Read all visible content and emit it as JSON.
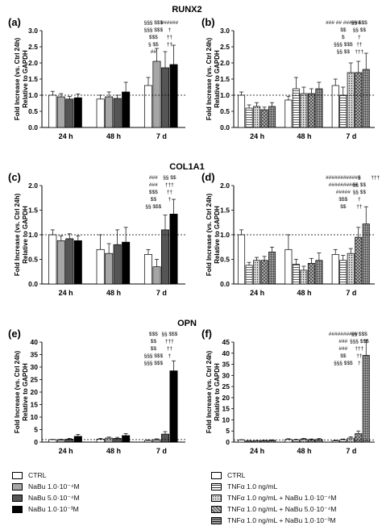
{
  "section_titles": [
    "RUNX2",
    "COL1A1",
    "OPN"
  ],
  "legend_left": {
    "items": [
      {
        "label": "CTRL",
        "color": "#ffffff"
      },
      {
        "label": "NaBu 1.0·10⁻⁴M",
        "color": "#a6a6a6"
      },
      {
        "label": "NaBu 5.0·10⁻⁴M",
        "color": "#555555"
      },
      {
        "label": "NaBu 1.0·10⁻³M",
        "color": "#000000"
      }
    ]
  },
  "legend_right": {
    "items": [
      {
        "label": "CTRL",
        "pattern": "white"
      },
      {
        "label": "TNFα 1.0 ng/mL",
        "pattern": "hlines"
      },
      {
        "label": "TNFα 1.0 ng/mL + NaBu 1.0·10⁻⁴M",
        "pattern": "dots"
      },
      {
        "label": "TNFα 1.0 ng/mL + NaBu 5.0·10⁻⁴M",
        "pattern": "dgrid"
      },
      {
        "label": "TNFα 1.0 ng/mL + NaBu 1.0·10⁻³M",
        "pattern": "grid"
      }
    ]
  },
  "chart_data": [
    {
      "panel": "(a)",
      "type": "bar",
      "title": "RUNX2",
      "ylabel": "Fold Increase (vs. Ctrl 24h) Relative to GAPDH",
      "ylim": [
        0,
        3.0
      ],
      "yticks": [
        "0.0",
        "0.5",
        "1.0",
        "1.5",
        "2.0",
        "2.5",
        "3.0"
      ],
      "categories": [
        "24 h",
        "48 h",
        "7 d"
      ],
      "reference_line": 1.0,
      "series": [
        {
          "values": [
            1.0,
            0.88,
            1.3
          ],
          "errors": [
            0.12,
            0.12,
            0.25
          ]
        },
        {
          "values": [
            0.95,
            0.95,
            2.05
          ],
          "errors": [
            0.1,
            0.15,
            0.4
          ]
        },
        {
          "values": [
            0.88,
            0.9,
            1.85
          ],
          "errors": [
            0.08,
            0.1,
            0.5
          ]
        },
        {
          "values": [
            0.92,
            1.1,
            1.95
          ],
          "errors": [
            0.12,
            0.3,
            0.6
          ]
        }
      ],
      "annotations": [
        "§§§ $$$",
        "§§§ $$$",
        "$$$",
        "§ $$",
        "##",
        "######",
        "†",
        "††",
        "††"
      ]
    },
    {
      "panel": "(b)",
      "type": "bar",
      "title": "",
      "ylabel": "Fold Increase (vs. Ctrl 24h) Relative to GAPDH",
      "ylim": [
        0,
        3.0
      ],
      "yticks": [
        "0.0",
        "0.5",
        "1.0",
        "1.5",
        "2.0",
        "2.5",
        "3.0"
      ],
      "categories": [
        "24 h",
        "48 h",
        "7 d"
      ],
      "reference_line": 1.0,
      "series": [
        {
          "values": [
            1.0,
            0.85,
            1.3
          ],
          "errors": [
            0.1,
            0.12,
            0.2
          ]
        },
        {
          "values": [
            0.6,
            1.2,
            1.0
          ],
          "errors": [
            0.1,
            0.35,
            0.25
          ]
        },
        {
          "values": [
            0.65,
            1.05,
            1.7
          ],
          "errors": [
            0.12,
            0.2,
            0.3
          ]
        },
        {
          "values": [
            0.55,
            1.05,
            1.7
          ],
          "errors": [
            0.08,
            0.15,
            0.35
          ]
        },
        {
          "values": [
            0.65,
            1.2,
            1.8
          ],
          "errors": [
            0.12,
            0.2,
            0.5
          ]
        }
      ],
      "annotations": [
        "### ## ######",
        "$$",
        "$",
        "§§§ $$$",
        "§§ $$",
        "§§ $$$",
        "§§ $$",
        "†",
        "††",
        "†††"
      ]
    },
    {
      "panel": "(c)",
      "type": "bar",
      "title": "COL1A1",
      "ylabel": "Fold Increase (vs. Ctrl 24h) Relative to GAPDH",
      "ylim": [
        0,
        2.0
      ],
      "yticks": [
        "0.0",
        "0.5",
        "1.0",
        "1.5",
        "2.0"
      ],
      "categories": [
        "24 h",
        "48 h",
        "7 d"
      ],
      "reference_line": 1.0,
      "series": [
        {
          "values": [
            1.0,
            0.7,
            0.6
          ],
          "errors": [
            0.1,
            0.3,
            0.1
          ]
        },
        {
          "values": [
            0.88,
            0.62,
            0.35
          ],
          "errors": [
            0.1,
            0.2,
            0.15
          ]
        },
        {
          "values": [
            0.92,
            0.8,
            1.1
          ],
          "errors": [
            0.1,
            0.3,
            0.3
          ]
        },
        {
          "values": [
            0.88,
            0.85,
            1.42
          ],
          "errors": [
            0.1,
            0.3,
            0.3
          ]
        }
      ],
      "annotations": [
        "###",
        "###",
        "$$$",
        "$$",
        "§§ $$$",
        "§§ $$",
        "†††",
        "††",
        "†"
      ]
    },
    {
      "panel": "(d)",
      "type": "bar",
      "title": "",
      "ylabel": "Fold Increase (vs. Ctrl 24h) Relative to GAPDH",
      "ylim": [
        0,
        2.0
      ],
      "yticks": [
        "0.0",
        "0.5",
        "1.0",
        "1.5",
        "2.0"
      ],
      "categories": [
        "24 h",
        "48 h",
        "7 d"
      ],
      "reference_line": 1.0,
      "series": [
        {
          "values": [
            1.0,
            0.7,
            0.6
          ],
          "errors": [
            0.1,
            0.3,
            0.1
          ]
        },
        {
          "values": [
            0.38,
            0.4,
            0.48
          ],
          "errors": [
            0.06,
            0.1,
            0.1
          ]
        },
        {
          "values": [
            0.48,
            0.28,
            0.62
          ],
          "errors": [
            0.06,
            0.08,
            0.1
          ]
        },
        {
          "values": [
            0.48,
            0.42,
            0.95
          ],
          "errors": [
            0.08,
            0.1,
            0.2
          ]
        },
        {
          "values": [
            0.65,
            0.48,
            1.22
          ],
          "errors": [
            0.1,
            0.15,
            0.35
          ]
        }
      ],
      "annotations": [
        "############",
        "##########",
        "#####",
        "$$$",
        "$$",
        "§",
        "§§ $$",
        "§§ $$",
        "†",
        "††",
        "†††"
      ]
    },
    {
      "panel": "(e)",
      "type": "bar",
      "title": "OPN",
      "ylabel": "Fold Increase (vs. Ctrl 24h) Relative to GAPDH",
      "ylim": [
        0,
        40
      ],
      "yticks": [
        "0",
        "5",
        "10",
        "15",
        "20",
        "25",
        "30",
        "35",
        "40"
      ],
      "categories": [
        "24 h",
        "48 h",
        "7 d"
      ],
      "reference_line": 1.0,
      "series": [
        {
          "values": [
            1.0,
            1.2,
            0.6
          ],
          "errors": [
            0.1,
            0.3,
            0.3
          ]
        },
        {
          "values": [
            1.0,
            1.6,
            1.0
          ],
          "errors": [
            0.15,
            0.4,
            0.3
          ]
        },
        {
          "values": [
            1.2,
            1.5,
            3.2
          ],
          "errors": [
            0.3,
            0.4,
            1.0
          ]
        },
        {
          "values": [
            2.3,
            2.6,
            28.5
          ],
          "errors": [
            0.8,
            0.8,
            4.0
          ]
        }
      ],
      "annotations": [
        "$$$",
        "$$",
        "$$",
        "§§§ $$$",
        "§§§ $$$",
        "§§ $$$",
        "†††",
        "††",
        "†"
      ]
    },
    {
      "panel": "(f)",
      "type": "bar",
      "title": "",
      "ylabel": "Fold Increase (vs. Ctrl 24h) Relative to GAPDH",
      "ylim": [
        0,
        45
      ],
      "yticks": [
        "0",
        "5",
        "10",
        "15",
        "20",
        "25",
        "30",
        "35",
        "40",
        "45"
      ],
      "categories": [
        "24 h",
        "48 h",
        "7 d"
      ],
      "reference_line": 1.0,
      "series": [
        {
          "values": [
            1.0,
            1.2,
            0.6
          ],
          "errors": [
            0.1,
            0.3,
            0.3
          ]
        },
        {
          "values": [
            0.6,
            1.0,
            1.1
          ],
          "errors": [
            0.1,
            0.3,
            0.3
          ]
        },
        {
          "values": [
            0.6,
            1.4,
            1.8
          ],
          "errors": [
            0.1,
            0.3,
            0.6
          ]
        },
        {
          "values": [
            0.7,
            1.1,
            3.8
          ],
          "errors": [
            0.1,
            0.3,
            1.2
          ]
        },
        {
          "values": [
            0.8,
            1.2,
            39.0
          ],
          "errors": [
            0.2,
            0.4,
            7.0
          ]
        }
      ],
      "annotations": [
        "##########",
        "###",
        "###",
        "$$",
        "§§§ $$$",
        "§§ $$$",
        "§§§ $$$",
        "†††",
        "††",
        "†"
      ]
    }
  ]
}
